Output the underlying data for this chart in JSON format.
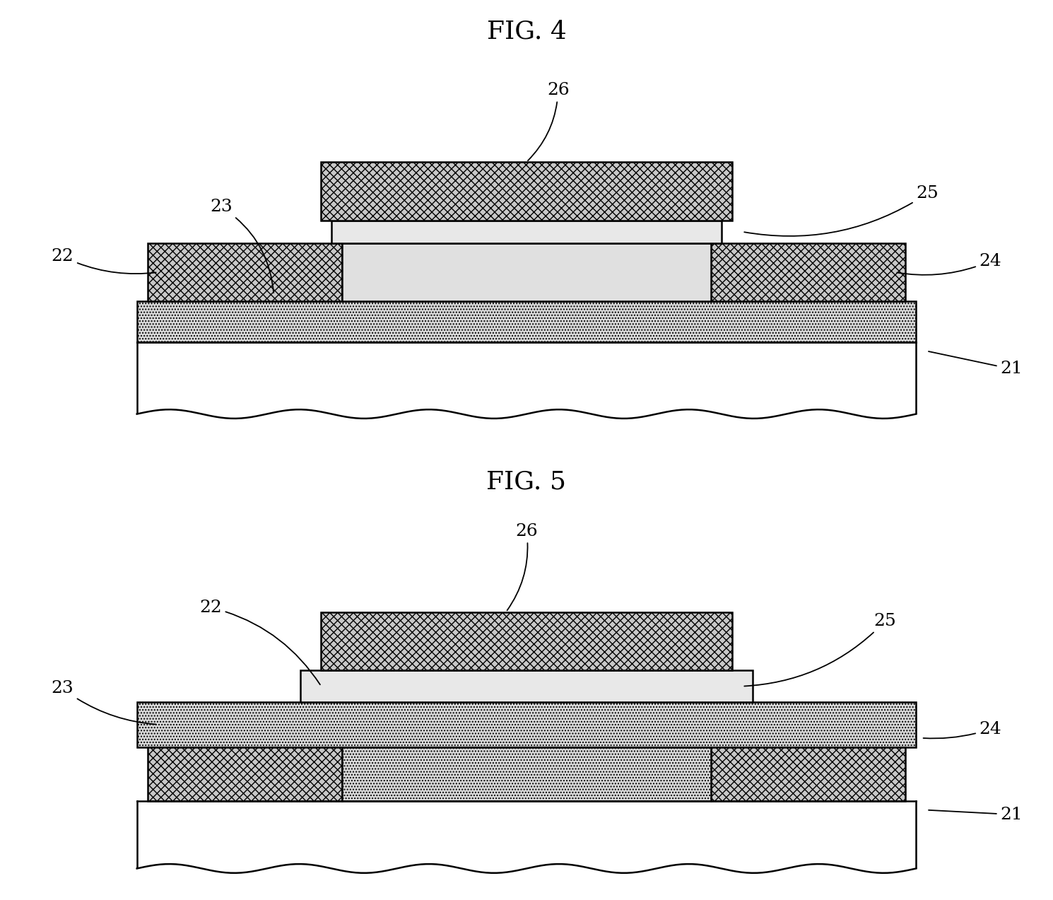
{
  "fig4_title": "FIG. 4",
  "fig5_title": "FIG. 5",
  "bg_color": "#ffffff",
  "lw": 1.8,
  "label_fs": 18,
  "title_fs": 26,
  "hatch_cross": "xxx",
  "hatch_dot": "....",
  "color_crosshatch": "#c8c8c8",
  "color_dotted": "#d8d8d8",
  "color_plain_gray": "#e0e0e0",
  "color_white": "#ffffff",
  "color_black": "#000000"
}
